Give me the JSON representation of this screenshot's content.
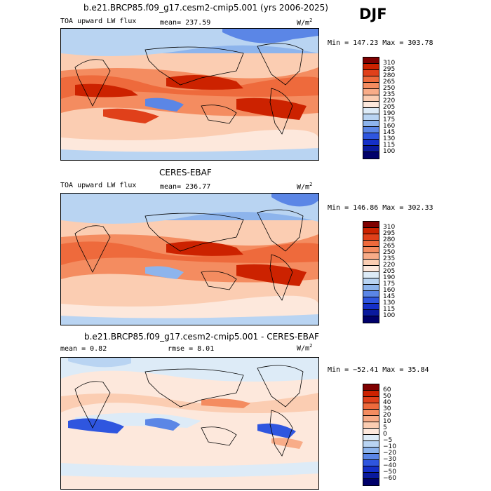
{
  "season": "DJF",
  "panels": [
    {
      "title": "b.e21.BRCP85.f09_g17.cesm2-cmip5.001 (yrs 2006-2025)",
      "left_label": "TOA upward LW flux",
      "center_label": "mean= 237.59",
      "units": "W/m",
      "units_sup": "2",
      "minmax": "Min = 147.23 Max = 303.78",
      "levels": [
        "310",
        "295",
        "280",
        "265",
        "250",
        "235",
        "220",
        "205",
        "190",
        "175",
        "160",
        "145",
        "130",
        "115",
        "100"
      ],
      "colors": [
        "#7f0000",
        "#cc2200",
        "#e0401a",
        "#ee6a3c",
        "#f48c60",
        "#f8ac88",
        "#fbcdb2",
        "#fde8dc",
        "#ddebf7",
        "#b9d4f2",
        "#8db4ec",
        "#5b86e6",
        "#2f56df",
        "#1530c8",
        "#0a1a9e",
        "#00006a"
      ]
    },
    {
      "title": "CERES-EBAF",
      "left_label": "TOA upward LW flux",
      "center_label": "mean= 236.77",
      "units": "W/m",
      "units_sup": "2",
      "minmax": "Min = 146.86 Max = 302.33",
      "levels": [
        "310",
        "295",
        "280",
        "265",
        "250",
        "235",
        "220",
        "205",
        "190",
        "175",
        "160",
        "145",
        "130",
        "115",
        "100"
      ],
      "colors": [
        "#7f0000",
        "#cc2200",
        "#e0401a",
        "#ee6a3c",
        "#f48c60",
        "#f8ac88",
        "#fbcdb2",
        "#fde8dc",
        "#ddebf7",
        "#b9d4f2",
        "#8db4ec",
        "#5b86e6",
        "#2f56df",
        "#1530c8",
        "#0a1a9e",
        "#00006a"
      ]
    },
    {
      "title": "b.e21.BRCP85.f09_g17.cesm2-cmip5.001 - CERES-EBAF",
      "left_label": "mean =    0.82",
      "center_label": "rmse =    8.01",
      "units": "W/m",
      "units_sup": "2",
      "minmax": "Min = −52.41 Max =  35.84",
      "levels": [
        "60",
        "50",
        "40",
        "30",
        "20",
        "10",
        "5",
        "0",
        "−5",
        "−10",
        "−20",
        "−30",
        "−40",
        "−50",
        "−60"
      ],
      "colors": [
        "#7f0000",
        "#cc2200",
        "#e0401a",
        "#ee6a3c",
        "#f48c60",
        "#f8ac88",
        "#fbcdb2",
        "#fde8dc",
        "#ddebf7",
        "#b9d4f2",
        "#8db4ec",
        "#5b86e6",
        "#2f56df",
        "#1530c8",
        "#0a1a9e",
        "#00006a"
      ]
    }
  ],
  "chart_data": [
    {
      "type": "heatmap",
      "title": "b.e21.BRCP85.f09_g17.cesm2-cmip5.001 (yrs 2006-2025)",
      "field": "TOA upward LW flux",
      "units": "W/m2",
      "mean": 237.59,
      "min": 147.23,
      "max": 303.78,
      "contour_levels": [
        100,
        115,
        130,
        145,
        160,
        175,
        190,
        205,
        220,
        235,
        250,
        265,
        280,
        295,
        310
      ]
    },
    {
      "type": "heatmap",
      "title": "CERES-EBAF",
      "field": "TOA upward LW flux",
      "units": "W/m2",
      "mean": 236.77,
      "min": 146.86,
      "max": 302.33,
      "contour_levels": [
        100,
        115,
        130,
        145,
        160,
        175,
        190,
        205,
        220,
        235,
        250,
        265,
        280,
        295,
        310
      ]
    },
    {
      "type": "heatmap",
      "title": "b.e21.BRCP85.f09_g17.cesm2-cmip5.001 - CERES-EBAF",
      "units": "W/m2",
      "mean": 0.82,
      "rmse": 8.01,
      "min": -52.41,
      "max": 35.84,
      "contour_levels": [
        -60,
        -50,
        -40,
        -30,
        -20,
        -10,
        -5,
        0,
        5,
        10,
        20,
        30,
        40,
        50,
        60
      ]
    }
  ]
}
